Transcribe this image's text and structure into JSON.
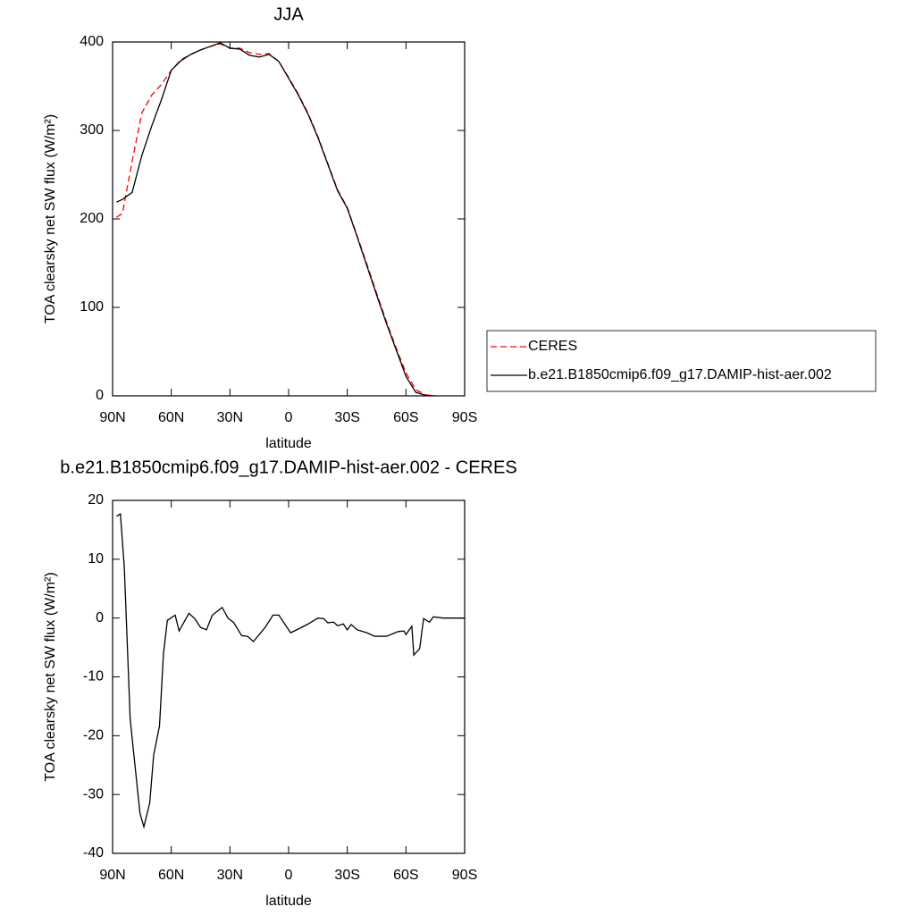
{
  "chart_data": [
    {
      "type": "line",
      "title": "JJA",
      "xlabel": "latitude",
      "ylabel": "TOA clearsky net SW flux (W/m²)",
      "x": [
        88,
        85,
        80,
        75,
        70,
        65,
        60,
        55,
        50,
        45,
        40,
        35,
        30,
        25,
        20,
        15,
        10,
        5,
        0,
        -5,
        -10,
        -15,
        -20,
        -25,
        -30,
        -35,
        -40,
        -45,
        -50,
        -55,
        -60,
        -65,
        -70,
        -75
      ],
      "series": [
        {
          "name": "CERES",
          "color": "#ff0000",
          "dash": true,
          "values": [
            202,
            206,
            265,
            320,
            340,
            352,
            368,
            380,
            386,
            391,
            395,
            398,
            393,
            393,
            388,
            386,
            387,
            378,
            360,
            341,
            319,
            293,
            263,
            233,
            213,
            181,
            149,
            116,
            84,
            54,
            26,
            7,
            1.2,
            0
          ]
        },
        {
          "name": "b.e21.B1850cmip6.f09_g17.DAMIP-hist-aer.002",
          "color": "#000000",
          "dash": false,
          "values": [
            219,
            222,
            230,
            272,
            305,
            335,
            368,
            379,
            386,
            391,
            395,
            399,
            393,
            392,
            385,
            383,
            386,
            378,
            359,
            340,
            318,
            292,
            262,
            232,
            212,
            180,
            147,
            114,
            82,
            52,
            22,
            4,
            0.5,
            0
          ]
        }
      ],
      "xlim": [
        90,
        -90
      ],
      "xticks": [
        {
          "value": 90,
          "label": "90N"
        },
        {
          "value": 60,
          "label": "60N"
        },
        {
          "value": 30,
          "label": "30N"
        },
        0,
        {
          "value": -30,
          "label": "30S"
        },
        {
          "value": -60,
          "label": "60S"
        },
        {
          "value": -90,
          "label": "90S"
        }
      ],
      "ylim": [
        0,
        400
      ],
      "yticks": [
        0,
        100,
        200,
        300,
        400
      ],
      "legend": "right"
    },
    {
      "type": "line",
      "title": "b.e21.B1850cmip6.f09_g17.DAMIP-hist-aer.002 - CERES",
      "xlabel": "latitude",
      "ylabel": "TOA clearsky net SW flux (W/m²)",
      "x": [
        88,
        86,
        84,
        81,
        76,
        74,
        71,
        69,
        66,
        64,
        62,
        58,
        56,
        51,
        48,
        45,
        42,
        39,
        34,
        31,
        28,
        24,
        21,
        18,
        12,
        8,
        5,
        2,
        -1,
        -6,
        -10,
        -15,
        -18,
        -20,
        -23,
        -25,
        -28,
        -30,
        -32,
        -35,
        -40,
        -44,
        -50,
        -56,
        -59,
        -60,
        -63,
        -64,
        -67,
        -69,
        -72,
        -74,
        -79,
        -90
      ],
      "series": [
        {
          "color": "#000000",
          "values": [
            17.3,
            17.7,
            8.6,
            -17.2,
            -33.2,
            -35.5,
            -31.4,
            -23.3,
            -18.3,
            -6.1,
            -0.4,
            0.5,
            -2.2,
            0.8,
            -0.1,
            -1.6,
            -2,
            0.5,
            1.8,
            0,
            -0.8,
            -3,
            -3.1,
            -4,
            -1.6,
            0.5,
            0.5,
            -1,
            -2.5,
            -1.7,
            -1,
            0,
            -0.1,
            -0.8,
            -0.7,
            -1.3,
            -1,
            -2,
            -1.1,
            -2,
            -2.5,
            -3.1,
            -3.1,
            -2.3,
            -2.2,
            -2.8,
            -1.4,
            -6.3,
            -5.2,
            -0.1,
            -0.7,
            0.2,
            0,
            0
          ]
        }
      ],
      "xlim": [
        90,
        -90
      ],
      "xticks": [
        {
          "value": 90,
          "label": "90N"
        },
        {
          "value": 60,
          "label": "60N"
        },
        {
          "value": 30,
          "label": "30N"
        },
        0,
        {
          "value": -30,
          "label": "30S"
        },
        {
          "value": -60,
          "label": "60S"
        },
        {
          "value": -90,
          "label": "90S"
        }
      ],
      "ylim": [
        -40,
        20
      ],
      "yticks": [
        -40,
        -30,
        -20,
        -10,
        0,
        10,
        20
      ]
    }
  ]
}
